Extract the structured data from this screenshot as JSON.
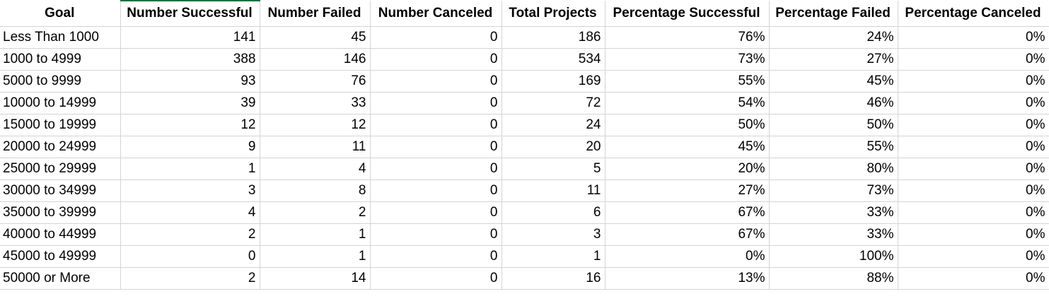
{
  "columns": [
    "Goal",
    "Number Successful",
    "Number Failed",
    "Number Canceled",
    "Total Projects",
    "Percentage Successful",
    "Percentage Failed",
    "Percentage Canceled"
  ],
  "rows": [
    [
      "Less Than 1000",
      "141",
      "45",
      "0",
      "186",
      "76%",
      "24%",
      "0%"
    ],
    [
      "1000 to 4999",
      "388",
      "146",
      "0",
      "534",
      "73%",
      "27%",
      "0%"
    ],
    [
      "5000 to 9999",
      "93",
      "76",
      "0",
      "169",
      "55%",
      "45%",
      "0%"
    ],
    [
      "10000 to 14999",
      "39",
      "33",
      "0",
      "72",
      "54%",
      "46%",
      "0%"
    ],
    [
      "15000 to 19999",
      "12",
      "12",
      "0",
      "24",
      "50%",
      "50%",
      "0%"
    ],
    [
      "20000 to 24999",
      "9",
      "11",
      "0",
      "20",
      "45%",
      "55%",
      "0%"
    ],
    [
      "25000 to 29999",
      "1",
      "4",
      "0",
      "5",
      "20%",
      "80%",
      "0%"
    ],
    [
      "30000 to 34999",
      "3",
      "8",
      "0",
      "11",
      "27%",
      "73%",
      "0%"
    ],
    [
      "35000 to 39999",
      "4",
      "2",
      "0",
      "6",
      "67%",
      "33%",
      "0%"
    ],
    [
      "40000 to 44999",
      "2",
      "1",
      "0",
      "3",
      "67%",
      "33%",
      "0%"
    ],
    [
      "45000 to 49999",
      "0",
      "1",
      "0",
      "1",
      "0%",
      "100%",
      "0%"
    ],
    [
      "50000 or More",
      "2",
      "14",
      "0",
      "16",
      "13%",
      "88%",
      "0%"
    ]
  ],
  "colors": {
    "gridline": "#d4d4d4",
    "selection_accent": "#1e7145",
    "background": "#ffffff",
    "text": "#000000"
  }
}
